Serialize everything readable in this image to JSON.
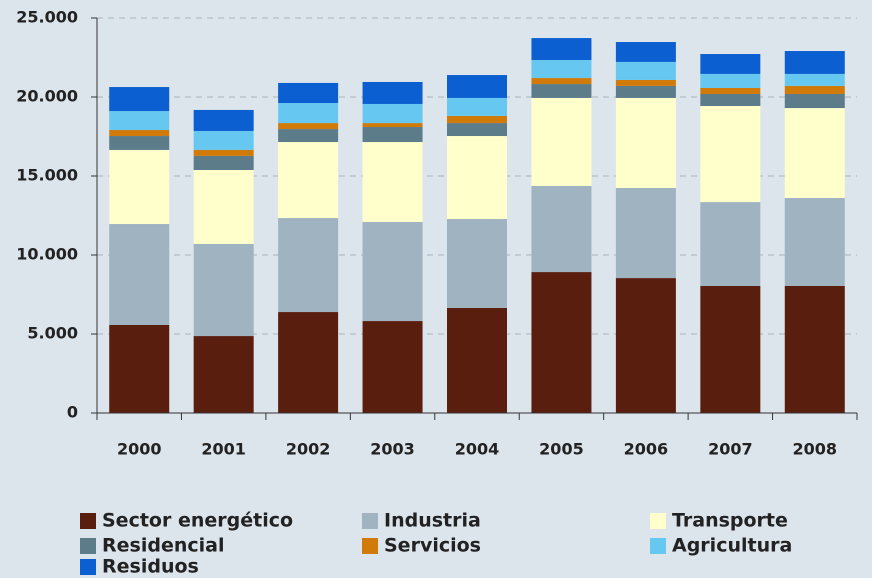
{
  "chart_data": {
    "type": "bar",
    "stacked": true,
    "categories": [
      "2000",
      "2001",
      "2002",
      "2003",
      "2004",
      "2005",
      "2006",
      "2007",
      "2008"
    ],
    "series": [
      {
        "name": "Sector energético",
        "color": "#5a1e0e",
        "values": [
          5570,
          4870,
          6390,
          5820,
          6650,
          8920,
          8540,
          8040,
          8040
        ]
      },
      {
        "name": "Industria",
        "color": "#9fb4c0",
        "values": [
          6390,
          5830,
          5950,
          6270,
          5630,
          5450,
          5700,
          5310,
          5570
        ]
      },
      {
        "name": "Transporte",
        "color": "#ffffcc",
        "values": [
          4690,
          4680,
          4810,
          5060,
          5250,
          5570,
          5700,
          6080,
          5690
        ]
      },
      {
        "name": "Residencial",
        "color": "#5c7c8a",
        "values": [
          880,
          890,
          820,
          950,
          820,
          880,
          760,
          760,
          890
        ]
      },
      {
        "name": "Servicios",
        "color": "#d07a0a",
        "values": [
          380,
          380,
          380,
          250,
          450,
          380,
          380,
          380,
          510
        ]
      },
      {
        "name": "Agricultura",
        "color": "#66c8f0",
        "values": [
          1200,
          1200,
          1270,
          1210,
          1140,
          1140,
          1140,
          890,
          760
        ]
      },
      {
        "name": "Residuos",
        "color": "#0b5fd0",
        "values": [
          1520,
          1330,
          1270,
          1390,
          1450,
          1390,
          1260,
          1260,
          1450
        ]
      }
    ],
    "ylim": [
      0,
      25000
    ],
    "yticks": [
      0,
      {
        "value": 5000,
        "label": "5.000"
      },
      {
        "value": 10000,
        "label": "10.000"
      },
      {
        "value": 15000,
        "label": "15.000"
      },
      {
        "value": 20000,
        "label": "20.000"
      },
      {
        "value": 25000,
        "label": "25.000"
      }
    ],
    "grid": true
  }
}
